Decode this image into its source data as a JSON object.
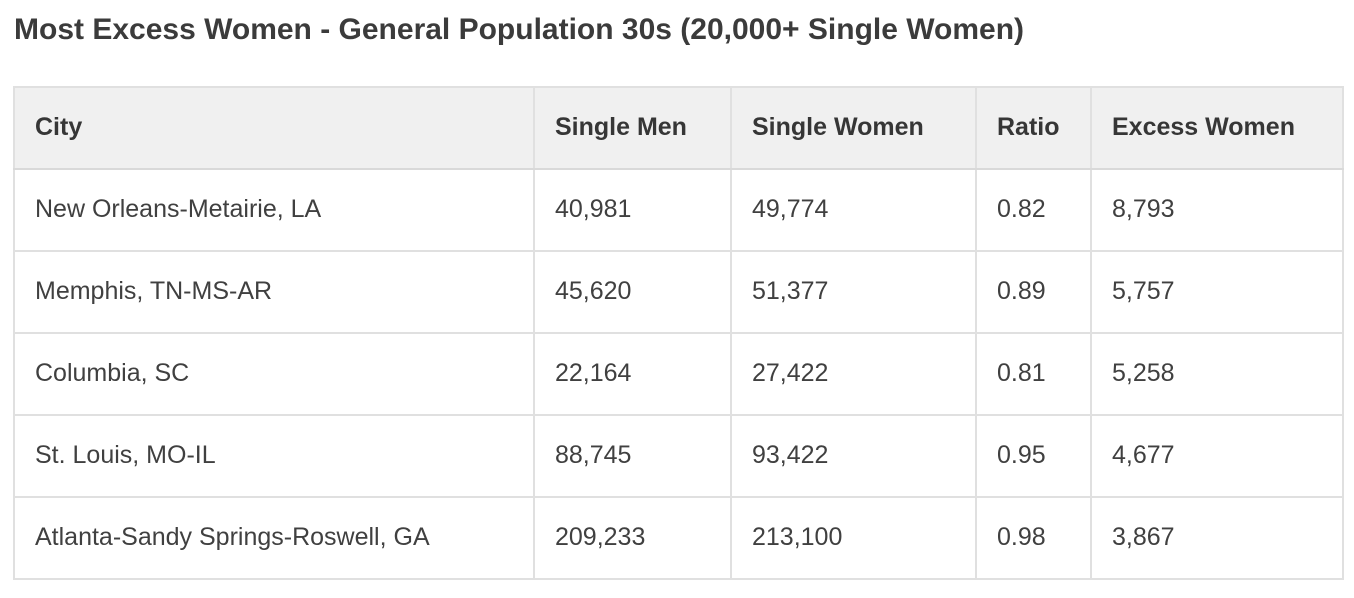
{
  "page": {
    "title": "Most Excess Women - General Population 30s (20,000+ Single Women)"
  },
  "colors": {
    "header_bg": "#f0f0f0",
    "border": "#e0e0e0",
    "title_text": "#3b3b3b",
    "body_text": "#404040"
  },
  "chart_data": {
    "type": "table",
    "title": "Most Excess Women - General Population 30s (20,000+ Single Women)",
    "columns": [
      "City",
      "Single Men",
      "Single Women",
      "Ratio",
      "Excess Women"
    ],
    "rows": [
      [
        "New Orleans-Metairie, LA",
        "40,981",
        "49,774",
        "0.82",
        "8,793"
      ],
      [
        "Memphis, TN-MS-AR",
        "45,620",
        "51,377",
        "0.89",
        "5,757"
      ],
      [
        "Columbia, SC",
        "22,164",
        "27,422",
        "0.81",
        "5,258"
      ],
      [
        "St. Louis, MO-IL",
        "88,745",
        "93,422",
        "0.95",
        "4,677"
      ],
      [
        "Atlanta-Sandy Springs-Roswell, GA",
        "209,233",
        "213,100",
        "0.98",
        "3,867"
      ]
    ]
  }
}
